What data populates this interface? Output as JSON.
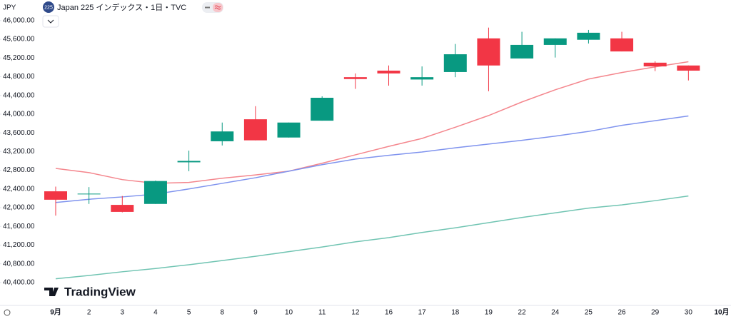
{
  "chart_data": {
    "type": "candlestick",
    "currency": "JPY",
    "title": "Japan 225 インデックス・1日・TVC",
    "symbol_badge": "225",
    "watermark": "TradingView",
    "categories": [
      "9月",
      "2",
      "3",
      "4",
      "5",
      "8",
      "9",
      "10",
      "11",
      "12",
      "16",
      "17",
      "18",
      "19",
      "22",
      "24",
      "25",
      "26",
      "29",
      "30",
      "10月"
    ],
    "open": [
      42350,
      42290,
      42060,
      42080,
      42970,
      43420,
      43890,
      43500,
      43860,
      44790,
      44930,
      44740,
      44900,
      45620,
      45190,
      45480,
      45590,
      45620,
      45100,
      45040,
      null
    ],
    "high": [
      42450,
      42440,
      42250,
      42580,
      43220,
      43820,
      44170,
      43820,
      44380,
      44870,
      45040,
      45020,
      45500,
      45850,
      45760,
      45620,
      45800,
      45760,
      45130,
      45040,
      null
    ],
    "low": [
      41830,
      42080,
      41900,
      42080,
      42780,
      43330,
      43440,
      43500,
      43860,
      44540,
      44610,
      44610,
      44790,
      44490,
      45190,
      45210,
      45510,
      45340,
      44920,
      44720,
      null
    ],
    "close": [
      42170,
      42300,
      41910,
      42570,
      43000,
      43630,
      43440,
      43820,
      44350,
      44750,
      44870,
      44790,
      45280,
      45040,
      45480,
      45620,
      45740,
      45340,
      45020,
      44930,
      null
    ],
    "up_color": "#089981",
    "down_color": "#f23645",
    "lines": [
      {
        "color": "#f4868d",
        "values": [
          42840,
          42750,
          42600,
          42520,
          42540,
          42630,
          42700,
          42780,
          42950,
          43130,
          43310,
          43480,
          43720,
          43970,
          44260,
          44520,
          44750,
          44890,
          45010,
          45120,
          null
        ]
      },
      {
        "color": "#7f93ee",
        "values": [
          42110,
          42180,
          42230,
          42290,
          42400,
          42520,
          42640,
          42780,
          42920,
          43040,
          43120,
          43190,
          43280,
          43360,
          43440,
          43530,
          43630,
          43760,
          43860,
          43960,
          null
        ]
      },
      {
        "color": "#70c4b2",
        "values": [
          40480,
          40550,
          40630,
          40700,
          40780,
          40870,
          40960,
          41060,
          41160,
          41270,
          41360,
          41470,
          41570,
          41680,
          41790,
          41890,
          41990,
          42060,
          42150,
          42250,
          null
        ]
      }
    ],
    "ylim": [
      39910,
      46440
    ],
    "yticks": [
      {
        "value": 40400,
        "label": "40,400.00"
      },
      {
        "value": 40800,
        "label": "40,800.00"
      },
      {
        "value": 41200,
        "label": "41,200.00"
      },
      {
        "value": 41600,
        "label": "41,600.00"
      },
      {
        "value": 42000,
        "label": "42,000.00"
      },
      {
        "value": 42400,
        "label": "42,400.00"
      },
      {
        "value": 42800,
        "label": "42,800.00"
      },
      {
        "value": 43200,
        "label": "43,200.00"
      },
      {
        "value": 43600,
        "label": "43,600.00"
      },
      {
        "value": 44000,
        "label": "44,000.00"
      },
      {
        "value": 44400,
        "label": "44,400.00"
      },
      {
        "value": 44800,
        "label": "44,800.00"
      },
      {
        "value": 45200,
        "label": "45,200.00"
      },
      {
        "value": 45600,
        "label": "45,600.00"
      },
      {
        "value": 46000,
        "label": "46,000.00"
      }
    ],
    "grid": false
  }
}
